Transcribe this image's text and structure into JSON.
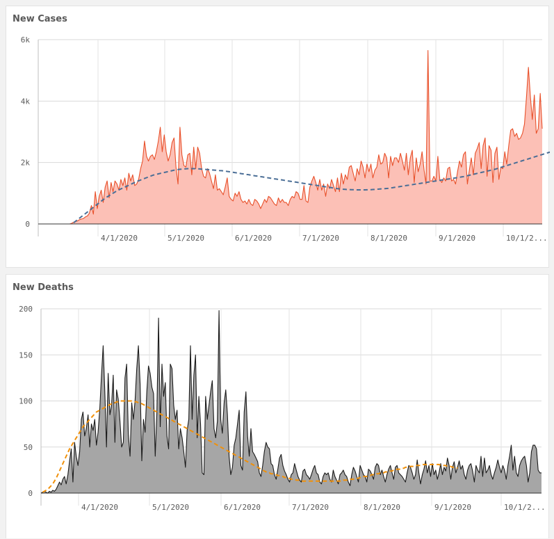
{
  "chart_data": [
    {
      "name": "new-cases",
      "title": "New Cases",
      "type": "area",
      "x_start": "3/1/2020",
      "x_end": "10/12/2020",
      "ylim": [
        0,
        6000
      ],
      "y_ticks": [
        0,
        2000,
        4000,
        6000
      ],
      "y_tick_labels": [
        "0",
        "2k",
        "4k",
        "6k"
      ],
      "x_tick_labels": [
        "4/1/2020",
        "5/1/2020",
        "6/1/2020",
        "7/1/2020",
        "8/1/2020",
        "9/1/2020",
        "10/1/2..."
      ],
      "grid": true,
      "legend": "none",
      "fill_color": "#fcc0b6",
      "line_color": "#e8502a",
      "trend_color": "#4a6e96",
      "trend_style": "dashed",
      "values": [
        0,
        0,
        0,
        0,
        0,
        0,
        0,
        0,
        0,
        0,
        0,
        0,
        0,
        0,
        0,
        0,
        0,
        20,
        60,
        80,
        100,
        140,
        160,
        180,
        230,
        260,
        350,
        600,
        320,
        1050,
        500,
        900,
        1100,
        700,
        1200,
        1400,
        850,
        1350,
        1050,
        1400,
        1300,
        1100,
        1450,
        1250,
        1500,
        1100,
        1650,
        1400,
        1600,
        1250,
        1300,
        1450,
        1800,
        2050,
        2700,
        2200,
        2050,
        2200,
        2250,
        2100,
        2350,
        2700,
        3150,
        2350,
        2900,
        2350,
        2050,
        2250,
        2650,
        2800,
        1850,
        1300,
        3150,
        2250,
        1900,
        1850,
        2250,
        2300,
        1600,
        2500,
        1800,
        2500,
        2300,
        1800,
        1550,
        1500,
        1800,
        1650,
        1400,
        1150,
        1600,
        1100,
        1150,
        1050,
        950,
        1200,
        1500,
        900,
        800,
        750,
        1000,
        900,
        1050,
        800,
        700,
        750,
        650,
        800,
        650,
        600,
        800,
        750,
        650,
        500,
        650,
        800,
        700,
        900,
        850,
        750,
        650,
        600,
        850,
        700,
        800,
        700,
        700,
        600,
        800,
        900,
        850,
        1050,
        1000,
        800,
        800,
        1250,
        750,
        700,
        1200,
        1400,
        1550,
        1350,
        1100,
        1450,
        1100,
        1300,
        900,
        1300,
        1150,
        1450,
        1250,
        1050,
        1500,
        1050,
        1650,
        1300,
        1600,
        1450,
        1850,
        1900,
        1650,
        1400,
        1800,
        1600,
        2050,
        1850,
        1500,
        1950,
        1700,
        1950,
        1500,
        1750,
        1850,
        2250,
        1950,
        2000,
        2300,
        2150,
        1500,
        2200,
        1900,
        2150,
        2150,
        2000,
        2300,
        2050,
        1750,
        2300,
        1600,
        2150,
        2400,
        1350,
        2150,
        1700,
        1950,
        2350,
        1750,
        1300,
        5650,
        1400,
        1400,
        1550,
        1400,
        2200,
        1450,
        1350,
        1500,
        1400,
        1800,
        1850,
        1400,
        1450,
        1300,
        1700,
        2050,
        1850,
        2250,
        2350,
        1300,
        1750,
        2150,
        1600,
        2300,
        2450,
        2650,
        1800,
        2550,
        2800,
        1550,
        2550,
        2400,
        1350,
        2300,
        2500,
        1450,
        1850,
        1800,
        2350,
        1950,
        2550,
        3050,
        3100,
        2850,
        2950,
        2750,
        2800,
        2950,
        3250,
        4100,
        5100,
        4150,
        3400,
        4200,
        2950,
        3100,
        4250,
        3100
      ],
      "trend": [
        0,
        0,
        0,
        0,
        0,
        0,
        0,
        0,
        0,
        0,
        0,
        0,
        0,
        0,
        0,
        0,
        0,
        0,
        40,
        90,
        140,
        190,
        240,
        290,
        340,
        390,
        440,
        490,
        540,
        590,
        640,
        690,
        740,
        790,
        840,
        880,
        920,
        960,
        1000,
        1040,
        1080,
        1110,
        1140,
        1170,
        1200,
        1230,
        1260,
        1290,
        1320,
        1350,
        1380,
        1405,
        1430,
        1455,
        1480,
        1505,
        1530,
        1555,
        1580,
        1600,
        1615,
        1630,
        1645,
        1660,
        1675,
        1690,
        1705,
        1720,
        1735,
        1750,
        1760,
        1770,
        1780,
        1785,
        1790,
        1795,
        1800,
        1800,
        1800,
        1800,
        1800,
        1795,
        1790,
        1785,
        1780,
        1775,
        1770,
        1765,
        1760,
        1755,
        1750,
        1745,
        1740,
        1735,
        1730,
        1720,
        1710,
        1700,
        1690,
        1680,
        1670,
        1660,
        1650,
        1640,
        1630,
        1620,
        1610,
        1600,
        1590,
        1580,
        1570,
        1560,
        1550,
        1540,
        1530,
        1520,
        1510,
        1500,
        1490,
        1480,
        1470,
        1460,
        1450,
        1440,
        1430,
        1420,
        1410,
        1400,
        1390,
        1380,
        1370,
        1360,
        1350,
        1340,
        1330,
        1320,
        1310,
        1300,
        1290,
        1280,
        1270,
        1260,
        1250,
        1240,
        1230,
        1220,
        1210,
        1200,
        1190,
        1180,
        1170,
        1160,
        1150,
        1140,
        1135,
        1130,
        1125,
        1120,
        1118,
        1116,
        1114,
        1112,
        1110,
        1110,
        1110,
        1110,
        1110,
        1112,
        1114,
        1116,
        1120,
        1125,
        1130,
        1135,
        1140,
        1145,
        1150,
        1155,
        1160,
        1170,
        1180,
        1190,
        1200,
        1210,
        1220,
        1230,
        1240,
        1250,
        1260,
        1270,
        1280,
        1290,
        1300,
        1310,
        1320,
        1330,
        1340,
        1350,
        1360,
        1370,
        1380,
        1390,
        1400,
        1410,
        1420,
        1430,
        1440,
        1450,
        1460,
        1470,
        1480,
        1490,
        1500,
        1510,
        1520,
        1530,
        1540,
        1555,
        1570,
        1585,
        1600,
        1615,
        1630,
        1645,
        1660,
        1675,
        1690,
        1705,
        1720,
        1735,
        1750,
        1765,
        1780,
        1800,
        1820,
        1840,
        1860,
        1880,
        1900,
        1920,
        1940,
        1960,
        1980,
        2000,
        2020,
        2040,
        2060,
        2080,
        2100,
        2120,
        2140,
        2160,
        2180,
        2200,
        2220,
        2240,
        2260,
        2280,
        2300,
        2320,
        2340,
        2360,
        2380,
        2400,
        2420,
        2440,
        2460,
        2480,
        2500,
        2520,
        2540,
        2560,
        2580,
        2600,
        2620,
        2640,
        2660,
        2680,
        2700,
        2720,
        2740,
        2760,
        2780,
        2800,
        2815,
        2830,
        2845,
        2860,
        2875,
        2890,
        2905,
        2920,
        2935,
        2950,
        2965,
        2980,
        2995,
        3000
      ]
    },
    {
      "name": "new-deaths",
      "title": "New Deaths",
      "type": "area",
      "x_start": "3/1/2020",
      "x_end": "10/12/2020",
      "ylim": [
        0,
        200
      ],
      "y_ticks": [
        0,
        50,
        100,
        150,
        200
      ],
      "y_tick_labels": [
        "0",
        "50",
        "100",
        "150",
        "200"
      ],
      "x_tick_labels": [
        "4/1/2020",
        "5/1/2020",
        "6/1/2020",
        "7/1/2020",
        "8/1/2020",
        "9/1/2020",
        "10/1/2..."
      ],
      "grid": true,
      "legend": "none",
      "fill_color": "#a6a6a6",
      "line_color": "#1a1a1a",
      "trend_color": "#f0900a",
      "trend_style": "dashed",
      "values": [
        0,
        1,
        2,
        1,
        0,
        2,
        1,
        3,
        2,
        4,
        8,
        12,
        9,
        15,
        18,
        10,
        20,
        35,
        48,
        12,
        55,
        40,
        30,
        45,
        80,
        88,
        62,
        70,
        85,
        50,
        75,
        68,
        80,
        52,
        66,
        92,
        128,
        160,
        110,
        50,
        130,
        85,
        95,
        128,
        55,
        112,
        102,
        78,
        50,
        55,
        125,
        140,
        64,
        40,
        98,
        80,
        100,
        135,
        160,
        118,
        35,
        80,
        66,
        110,
        138,
        130,
        115,
        108,
        40,
        88,
        190,
        72,
        140,
        105,
        120,
        62,
        48,
        140,
        135,
        95,
        80,
        90,
        48,
        70,
        60,
        45,
        28,
        68,
        80,
        160,
        80,
        128,
        150,
        60,
        105,
        75,
        22,
        20,
        105,
        80,
        95,
        110,
        122,
        70,
        60,
        78,
        198,
        80,
        65,
        98,
        112,
        85,
        40,
        20,
        28,
        52,
        60,
        75,
        90,
        30,
        25,
        88,
        110,
        62,
        40,
        70,
        45,
        42,
        38,
        34,
        22,
        18,
        30,
        45,
        55,
        50,
        48,
        32,
        30,
        20,
        15,
        26,
        38,
        42,
        30,
        24,
        20,
        15,
        12,
        20,
        22,
        32,
        25,
        18,
        14,
        12,
        24,
        26,
        20,
        18,
        15,
        20,
        26,
        30,
        22,
        20,
        12,
        10,
        18,
        22,
        20,
        22,
        15,
        12,
        25,
        18,
        14,
        10,
        20,
        22,
        25,
        20,
        18,
        12,
        8,
        20,
        28,
        24,
        18,
        12,
        30,
        25,
        20,
        18,
        12,
        26,
        24,
        20,
        15,
        28,
        32,
        30,
        20,
        25,
        18,
        12,
        20,
        26,
        30,
        22,
        15,
        28,
        30,
        22,
        20,
        18,
        15,
        12,
        22,
        30,
        28,
        22,
        15,
        20,
        36,
        22,
        10,
        20,
        26,
        35,
        22,
        30,
        18,
        32,
        20,
        25,
        15,
        22,
        32,
        20,
        28,
        24,
        38,
        30,
        15,
        28,
        34,
        22,
        28,
        35,
        26,
        30,
        20,
        15,
        25,
        30,
        32,
        24,
        12,
        30,
        25,
        22,
        40,
        18,
        38,
        22,
        25,
        30,
        20,
        15,
        22,
        28,
        36,
        28,
        22,
        30,
        25,
        15,
        30,
        40,
        52,
        25,
        40,
        22,
        18,
        30,
        35,
        38,
        40,
        30,
        12,
        22,
        45,
        52,
        52,
        48,
        25,
        22,
        22
      ],
      "trend": [
        0,
        1,
        2,
        3,
        4,
        6,
        8,
        10,
        13,
        16,
        20,
        24,
        28,
        32,
        36,
        40,
        44,
        48,
        51,
        54,
        57,
        60,
        63,
        66,
        69,
        72,
        74,
        76,
        78,
        80,
        82,
        84,
        86,
        88,
        89,
        90,
        91,
        92,
        93,
        94,
        95,
        96,
        97,
        98,
        98,
        99,
        99,
        100,
        100,
        100,
        100,
        100,
        100,
        100,
        100,
        100,
        99,
        99,
        98,
        98,
        97,
        96,
        95,
        94,
        93,
        92,
        91,
        90,
        89,
        88,
        87,
        86,
        85,
        84,
        83,
        82,
        81,
        80,
        79,
        78,
        77,
        76,
        75,
        74,
        73,
        72,
        71,
        70,
        69,
        68,
        67,
        66,
        65,
        64,
        63,
        62,
        61,
        60,
        59,
        58,
        57,
        56,
        55,
        54,
        53,
        52,
        51,
        50,
        49,
        48,
        47,
        46,
        45,
        44,
        43,
        42,
        41,
        40,
        39,
        38,
        37,
        36,
        35,
        34,
        33,
        32,
        31,
        30,
        29,
        28,
        27,
        26,
        25,
        24,
        23,
        22,
        22,
        21,
        21,
        20,
        20,
        19,
        19,
        18,
        18,
        17,
        17,
        16,
        16,
        15,
        15,
        15,
        14,
        14,
        14,
        13,
        13,
        13,
        13,
        13,
        13,
        13,
        13,
        13,
        13,
        13,
        13,
        13,
        13,
        13,
        13,
        13,
        13,
        13,
        13,
        13,
        13,
        13,
        13,
        13,
        14,
        14,
        14,
        14,
        15,
        15,
        15,
        16,
        16,
        16,
        17,
        17,
        18,
        18,
        18,
        19,
        19,
        20,
        20,
        20,
        21,
        21,
        22,
        22,
        22,
        23,
        23,
        24,
        24,
        24,
        25,
        25,
        26,
        26,
        26,
        27,
        27,
        28,
        28,
        28,
        29,
        29,
        29,
        30,
        30,
        30,
        30,
        31,
        31,
        31,
        31,
        31,
        31,
        31,
        31,
        31,
        31,
        31,
        30,
        30,
        30,
        30,
        29,
        29,
        29,
        28,
        28,
        28,
        27
      ]
    }
  ]
}
